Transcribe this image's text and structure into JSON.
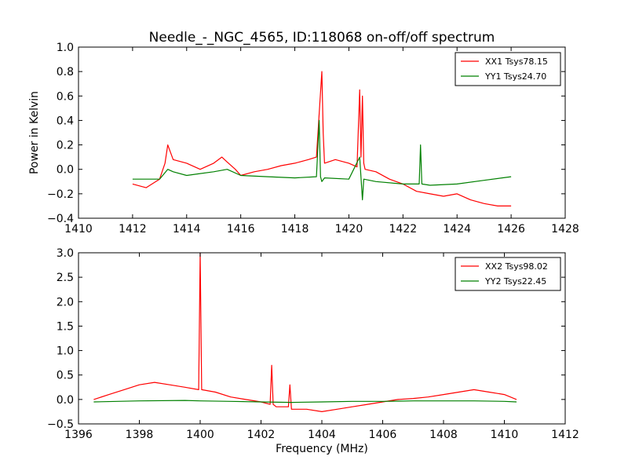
{
  "chart_data": [
    {
      "type": "line",
      "title": "Needle_-_NGC_4565, ID:118068 on-off/off spectrum",
      "xlabel": "",
      "ylabel": "Power in Kelvin",
      "xlim": [
        1410,
        1428
      ],
      "ylim": [
        -0.4,
        1.0
      ],
      "xticks": [
        "1410",
        "1412",
        "1414",
        "1416",
        "1418",
        "1420",
        "1422",
        "1424",
        "1426",
        "1428"
      ],
      "yticks": [
        "−0.4",
        "−0.2",
        "0.0",
        "0.2",
        "0.4",
        "0.6",
        "0.8",
        "1.0"
      ],
      "legend_position": "top-right",
      "series": [
        {
          "name": "XX1 Tsys78.15",
          "color": "#ff0000",
          "x": [
            1412.0,
            1412.5,
            1413.0,
            1413.2,
            1413.3,
            1413.5,
            1414.0,
            1414.5,
            1415.0,
            1415.3,
            1415.5,
            1415.8,
            1416.0,
            1416.5,
            1417.0,
            1417.5,
            1418.0,
            1418.5,
            1418.8,
            1419.0,
            1419.05,
            1419.1,
            1419.5,
            1420.0,
            1420.3,
            1420.4,
            1420.45,
            1420.5,
            1420.55,
            1420.6,
            1421.0,
            1421.5,
            1422.0,
            1422.5,
            1423.0,
            1423.5,
            1424.0,
            1424.5,
            1425.0,
            1425.5,
            1426.0
          ],
          "y": [
            -0.12,
            -0.15,
            -0.08,
            0.05,
            0.2,
            0.08,
            0.05,
            0.0,
            0.05,
            0.1,
            0.06,
            0.0,
            -0.05,
            -0.02,
            0.0,
            0.03,
            0.05,
            0.08,
            0.1,
            0.8,
            0.3,
            0.05,
            0.08,
            0.05,
            0.02,
            0.65,
            0.1,
            0.6,
            0.05,
            0.0,
            -0.02,
            -0.08,
            -0.12,
            -0.18,
            -0.2,
            -0.22,
            -0.2,
            -0.25,
            -0.28,
            -0.3,
            -0.3
          ]
        },
        {
          "name": "YY1 Tsys24.70",
          "color": "#008000",
          "x": [
            1412.0,
            1413.0,
            1413.3,
            1413.5,
            1414.0,
            1415.0,
            1415.5,
            1416.0,
            1417.0,
            1418.0,
            1418.8,
            1418.9,
            1418.95,
            1419.0,
            1419.1,
            1420.0,
            1420.4,
            1420.5,
            1420.55,
            1421.0,
            1422.0,
            1422.6,
            1422.65,
            1422.7,
            1423.0,
            1424.0,
            1425.0,
            1426.0
          ],
          "y": [
            -0.08,
            -0.08,
            0.0,
            -0.02,
            -0.05,
            -0.02,
            0.0,
            -0.05,
            -0.06,
            -0.07,
            -0.06,
            0.4,
            -0.06,
            -0.1,
            -0.07,
            -0.08,
            0.1,
            -0.25,
            -0.08,
            -0.1,
            -0.12,
            -0.12,
            0.2,
            -0.12,
            -0.13,
            -0.12,
            -0.09,
            -0.06
          ]
        }
      ]
    },
    {
      "type": "line",
      "title": "",
      "xlabel": "Frequency (MHz)",
      "ylabel": "",
      "xlim": [
        1396,
        1412
      ],
      "ylim": [
        -0.5,
        3.0
      ],
      "xticks": [
        "1396",
        "1398",
        "1400",
        "1402",
        "1404",
        "1406",
        "1408",
        "1410",
        "1412"
      ],
      "yticks": [
        "−0.5",
        "0.0",
        "0.5",
        "1.0",
        "1.5",
        "2.0",
        "2.5",
        "3.0"
      ],
      "legend_position": "top-right",
      "series": [
        {
          "name": "XX2 Tsys98.02",
          "color": "#ff0000",
          "x": [
            1396.5,
            1397.0,
            1397.5,
            1398.0,
            1398.5,
            1399.0,
            1399.5,
            1399.95,
            1400.0,
            1400.05,
            1400.5,
            1401.0,
            1401.5,
            1402.0,
            1402.3,
            1402.35,
            1402.4,
            1402.5,
            1402.9,
            1402.95,
            1403.0,
            1403.5,
            1404.0,
            1404.5,
            1405.0,
            1405.5,
            1406.0,
            1406.5,
            1407.0,
            1407.5,
            1408.0,
            1408.5,
            1409.0,
            1409.5,
            1410.0,
            1410.4
          ],
          "y": [
            0.0,
            0.1,
            0.2,
            0.3,
            0.35,
            0.3,
            0.25,
            0.2,
            3.0,
            0.2,
            0.15,
            0.05,
            0.0,
            -0.05,
            -0.1,
            0.7,
            -0.1,
            -0.15,
            -0.15,
            0.3,
            -0.2,
            -0.2,
            -0.25,
            -0.2,
            -0.15,
            -0.1,
            -0.05,
            0.0,
            0.02,
            0.05,
            0.1,
            0.15,
            0.2,
            0.15,
            0.1,
            0.0
          ]
        },
        {
          "name": "YY2 Tsys22.45",
          "color": "#008000",
          "x": [
            1396.5,
            1398.0,
            1399.5,
            1400.0,
            1401.0,
            1402.0,
            1403.0,
            1404.0,
            1405.0,
            1406.0,
            1407.0,
            1408.0,
            1409.0,
            1410.0,
            1410.4
          ],
          "y": [
            -0.05,
            -0.03,
            -0.02,
            -0.03,
            -0.04,
            -0.05,
            -0.06,
            -0.05,
            -0.04,
            -0.04,
            -0.03,
            -0.03,
            -0.03,
            -0.04,
            -0.05
          ]
        }
      ]
    }
  ]
}
